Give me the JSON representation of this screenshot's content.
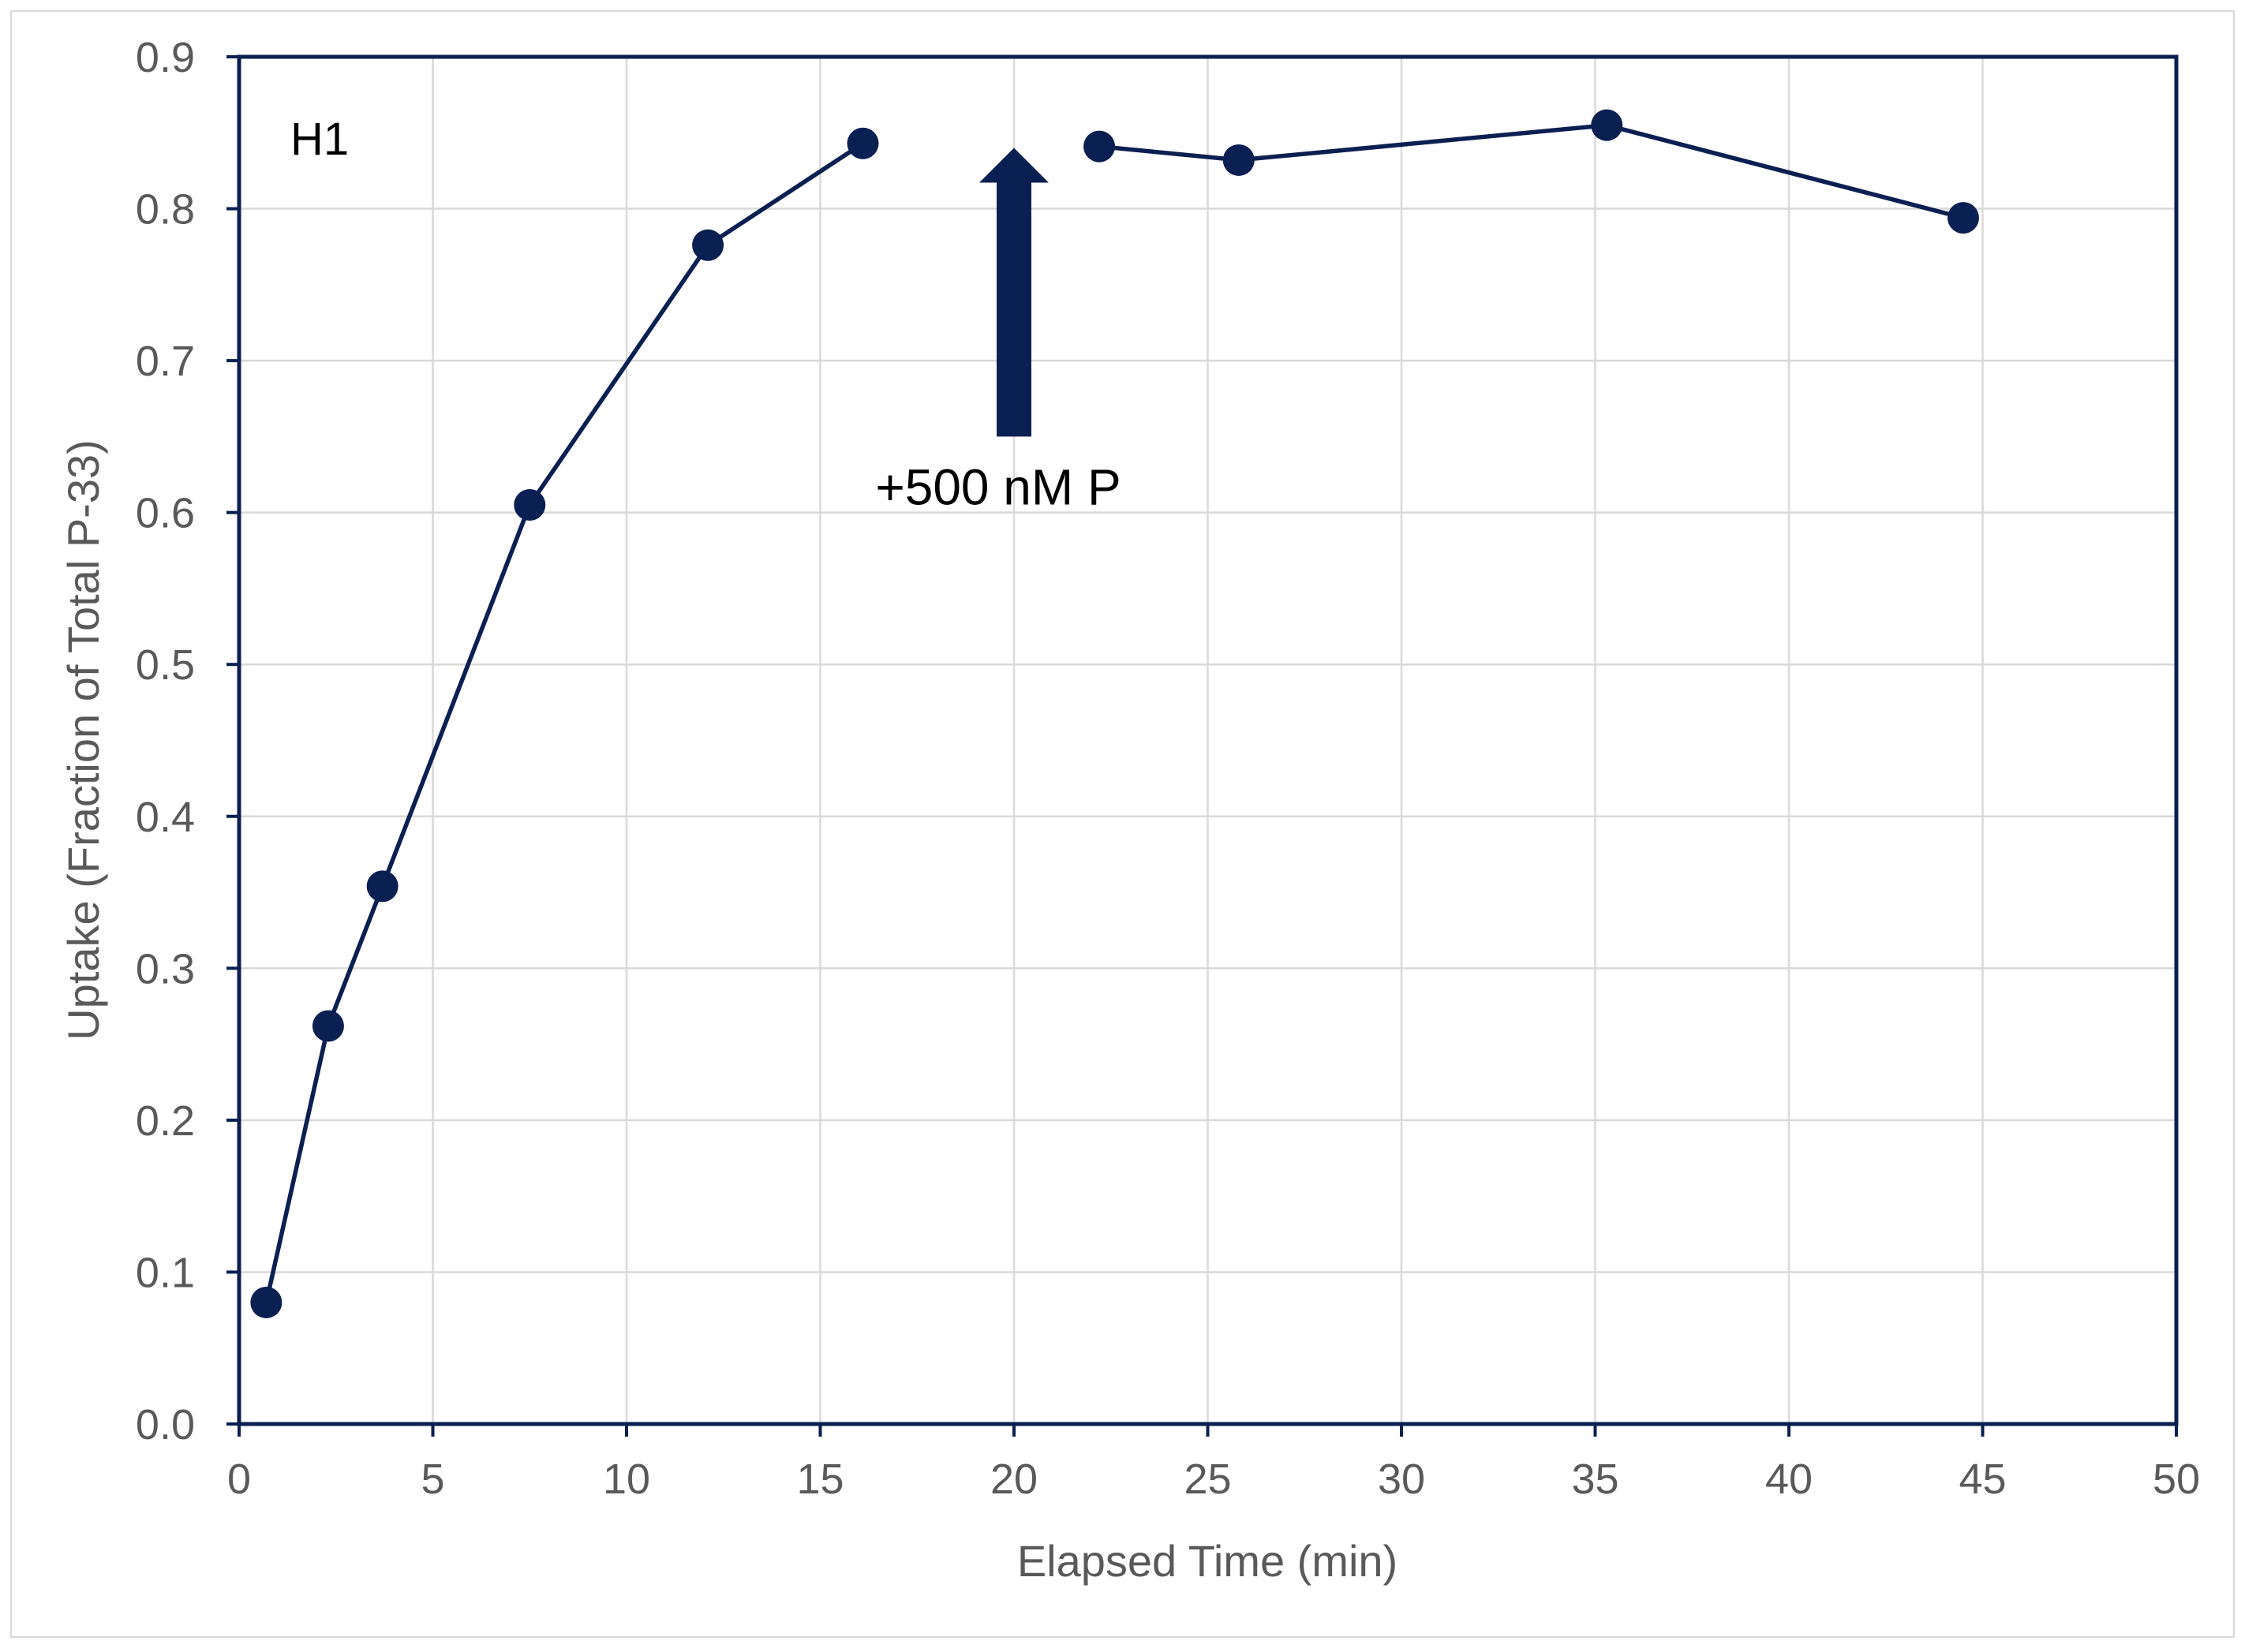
{
  "chart_data": {
    "type": "line",
    "panel_label": "H1",
    "xlabel": "Elapsed Time (min)",
    "ylabel": "Uptake (Fraction of Total P-33)",
    "xlim": [
      0,
      50
    ],
    "ylim": [
      0,
      0.9
    ],
    "x_ticks": [
      {
        "value": 0,
        "label": "0"
      },
      {
        "value": 5,
        "label": "5"
      },
      {
        "value": 10,
        "label": "10"
      },
      {
        "value": 15,
        "label": "15"
      },
      {
        "value": 20,
        "label": "20"
      },
      {
        "value": 25,
        "label": "25"
      },
      {
        "value": 30,
        "label": "30"
      },
      {
        "value": 35,
        "label": "35"
      },
      {
        "value": 40,
        "label": "40"
      },
      {
        "value": 45,
        "label": "45"
      },
      {
        "value": 50,
        "label": "50"
      }
    ],
    "y_ticks": [
      {
        "value": 0.0,
        "label": "0.0"
      },
      {
        "value": 0.1,
        "label": "0.1"
      },
      {
        "value": 0.2,
        "label": "0.2"
      },
      {
        "value": 0.3,
        "label": "0.3"
      },
      {
        "value": 0.4,
        "label": "0.4"
      },
      {
        "value": 0.5,
        "label": "0.5"
      },
      {
        "value": 0.6,
        "label": "0.6"
      },
      {
        "value": 0.7,
        "label": "0.7"
      },
      {
        "value": 0.8,
        "label": "0.8"
      },
      {
        "value": 0.9,
        "label": "0.9"
      }
    ],
    "grid": true,
    "series_segments": [
      {
        "points": [
          {
            "x": 0.7,
            "y": 0.08
          },
          {
            "x": 2.3,
            "y": 0.262
          },
          {
            "x": 3.7,
            "y": 0.354
          },
          {
            "x": 7.5,
            "y": 0.605
          },
          {
            "x": 12.1,
            "y": 0.776
          },
          {
            "x": 16.1,
            "y": 0.843
          }
        ]
      },
      {
        "points": [
          {
            "x": 22.2,
            "y": 0.841
          },
          {
            "x": 25.8,
            "y": 0.832
          },
          {
            "x": 35.3,
            "y": 0.855
          },
          {
            "x": 44.5,
            "y": 0.794
          }
        ]
      }
    ],
    "annotation": {
      "text": "+500 nM P",
      "x": 20,
      "y_from": 0.65,
      "y_to": 0.84
    },
    "colors": {
      "series": "#0a1f52",
      "axis": "#0a1f52",
      "grid": "#d9d9d9",
      "tick_text": "#595959"
    }
  }
}
